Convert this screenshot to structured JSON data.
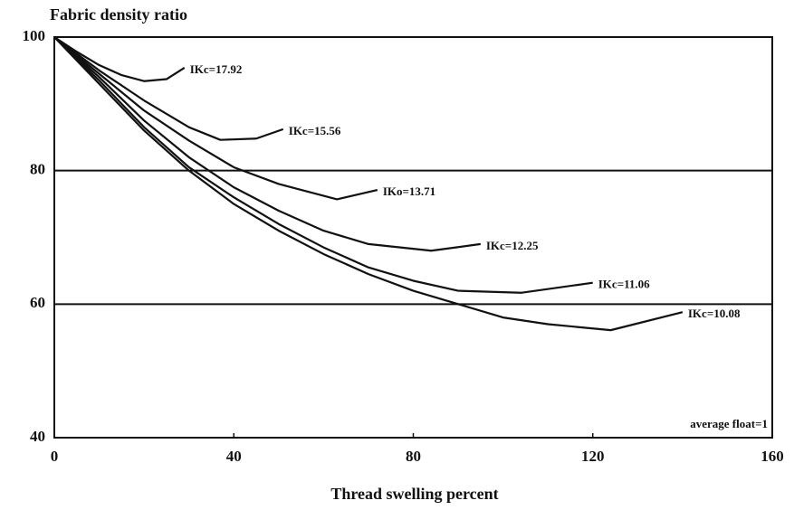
{
  "chart_data": {
    "type": "line",
    "title": "Fabric density ratio",
    "x_label": "Thread swelling percent",
    "annotation": "average float=1",
    "xlim": [
      0,
      160
    ],
    "xticks": [
      0,
      40,
      80,
      120,
      160
    ],
    "ylim": [
      40,
      100
    ],
    "yticks": [
      40,
      60,
      80,
      100
    ],
    "grid": true,
    "color": "#111111",
    "series": [
      {
        "name": "IKc=17.92",
        "color": "#111111",
        "x": [
          0,
          5,
          10,
          15,
          20,
          25,
          29
        ],
        "values": [
          100,
          97.8,
          95.8,
          94.3,
          93.4,
          93.7,
          95.4
        ]
      },
      {
        "name": "IKc=15.56",
        "color": "#111111",
        "x": [
          0,
          10,
          20,
          30,
          37,
          45,
          51
        ],
        "values": [
          100,
          95,
          90.5,
          86.5,
          84.6,
          84.8,
          86.2
        ]
      },
      {
        "name": "IKo=13.71",
        "color": "#111111",
        "x": [
          0,
          10,
          20,
          30,
          40,
          50,
          63,
          72
        ],
        "values": [
          100,
          94.5,
          89,
          84.5,
          80.5,
          78,
          75.7,
          77.1
        ]
      },
      {
        "name": "IKc=12.25",
        "color": "#111111",
        "x": [
          0,
          10,
          20,
          30,
          40,
          50,
          60,
          70,
          84,
          95
        ],
        "values": [
          100,
          94,
          87.5,
          82,
          77.5,
          74,
          71,
          69,
          68,
          69
        ]
      },
      {
        "name": "IKc=11.06",
        "color": "#111111",
        "x": [
          0,
          10,
          20,
          30,
          40,
          50,
          60,
          70,
          80,
          90,
          104,
          120
        ],
        "values": [
          100,
          93.5,
          86.5,
          80.5,
          76,
          72,
          68.5,
          65.5,
          63.5,
          62,
          61.7,
          63.2
        ]
      },
      {
        "name": "IKc=10.08",
        "color": "#111111",
        "x": [
          0,
          10,
          20,
          30,
          40,
          50,
          60,
          70,
          80,
          90,
          100,
          110,
          124,
          140
        ],
        "values": [
          100,
          93,
          86,
          80,
          75,
          71,
          67.5,
          64.5,
          62,
          60,
          58,
          57,
          56.1,
          58.8
        ]
      }
    ]
  }
}
